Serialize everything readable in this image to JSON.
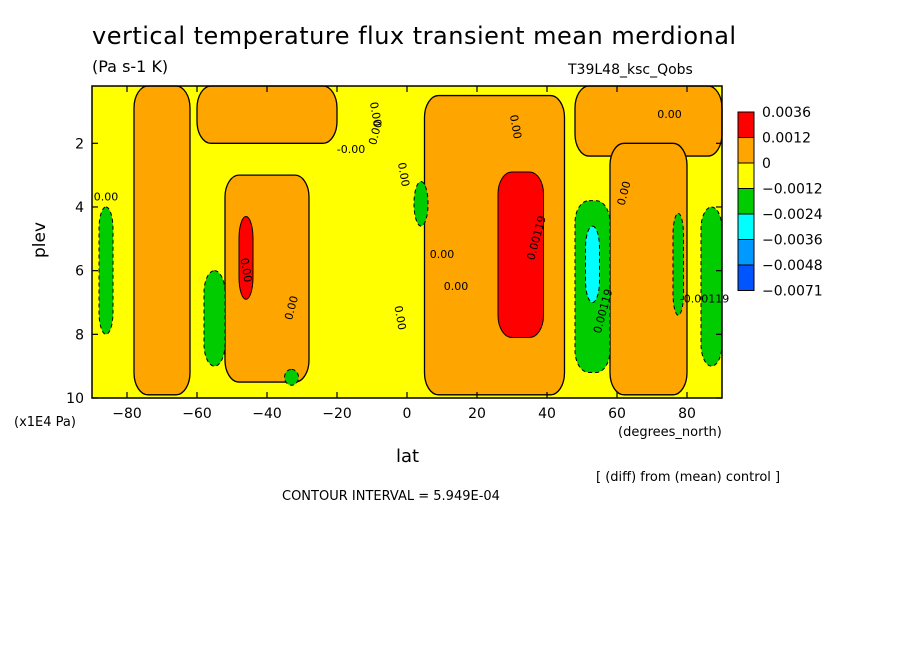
{
  "chart_data": {
    "type": "heatmap",
    "title": "vertical temperature flux transient mean merdional",
    "units": "(Pa s-1 K)",
    "run_id": "T39L48_ksc_Qobs",
    "xlabel": "lat",
    "x_units": "(degrees_north)",
    "ylabel": "plev",
    "y_units": "(x1E4 Pa)",
    "note": "[ (diff) from (mean) control ]",
    "contour_interval": "CONTOUR INTERVAL = 5.949E-04",
    "xlim": [
      -90,
      90
    ],
    "ylim": [
      10,
      0.2
    ],
    "x_ticks": [
      -80,
      -60,
      -40,
      -20,
      0,
      20,
      40,
      60,
      80
    ],
    "x_tick_labels": [
      "−80",
      "−60",
      "−40",
      "−20",
      "0",
      "20",
      "40",
      "60",
      "80"
    ],
    "y_ticks": [
      2,
      4,
      6,
      8,
      10
    ],
    "legend": {
      "colors": [
        "#ff0000",
        "#ffa500",
        "#ffff00",
        "#00cc00",
        "#00ffff",
        "#0099ff",
        "#0055ff"
      ],
      "labels": [
        "0.0036",
        "0.0012",
        "0",
        "−0.0012",
        "−0.0024",
        "−0.0036",
        "−0.0048",
        "−0.0071"
      ]
    },
    "contour_labels": [
      "-0.00",
      "0.00",
      "0.00",
      "0.00",
      "0.00119",
      "0.00",
      "0.00",
      "0.00",
      "0.00",
      "0.00",
      "0.00",
      "0.00",
      "0.00",
      "0.00119",
      "0.00",
      "-0.00119"
    ],
    "regions": [
      {
        "level": "pos",
        "x0": -78,
        "x1": -62,
        "y0": 0.2,
        "y1": 9.9,
        "note": "orange band"
      },
      {
        "level": "pos",
        "x0": -52,
        "x1": -28,
        "y0": 3.0,
        "y1": 9.5
      },
      {
        "level": "high",
        "x0": -48,
        "x1": -44,
        "y0": 4.3,
        "y1": 6.9
      },
      {
        "level": "pos",
        "x0": -60,
        "x1": -20,
        "y0": 0.2,
        "y1": 2.0
      },
      {
        "level": "pos",
        "x0": 5,
        "x1": 45,
        "y0": 0.5,
        "y1": 9.9
      },
      {
        "level": "high",
        "x0": 26,
        "x1": 39,
        "y0": 2.9,
        "y1": 8.1
      },
      {
        "level": "pos",
        "x0": 48,
        "x1": 90,
        "y0": 0.2,
        "y1": 2.4
      },
      {
        "level": "pos",
        "x0": 58,
        "x1": 80,
        "y0": 2.0,
        "y1": 9.9
      },
      {
        "level": "neg2",
        "x0": -58,
        "x1": -52,
        "y0": 6.0,
        "y1": 9.0
      },
      {
        "level": "neg2",
        "x0": 48,
        "x1": 58,
        "y0": 3.8,
        "y1": 9.2
      },
      {
        "level": "neg3",
        "x0": 51,
        "x1": 55,
        "y0": 4.6,
        "y1": 7.0
      },
      {
        "level": "neg2",
        "x0": 84,
        "x1": 90,
        "y0": 4.0,
        "y1": 9.0
      },
      {
        "level": "neg2",
        "x0": 2,
        "x1": 6,
        "y0": 3.2,
        "y1": 4.6
      },
      {
        "level": "neg2",
        "x0": -88,
        "x1": -84,
        "y0": 4.0,
        "y1": 8.0
      },
      {
        "level": "neg2",
        "x0": 76,
        "x1": 79,
        "y0": 4.2,
        "y1": 7.4
      },
      {
        "level": "neg2",
        "x0": -35,
        "x1": -31,
        "y0": 9.1,
        "y1": 9.6
      }
    ]
  }
}
